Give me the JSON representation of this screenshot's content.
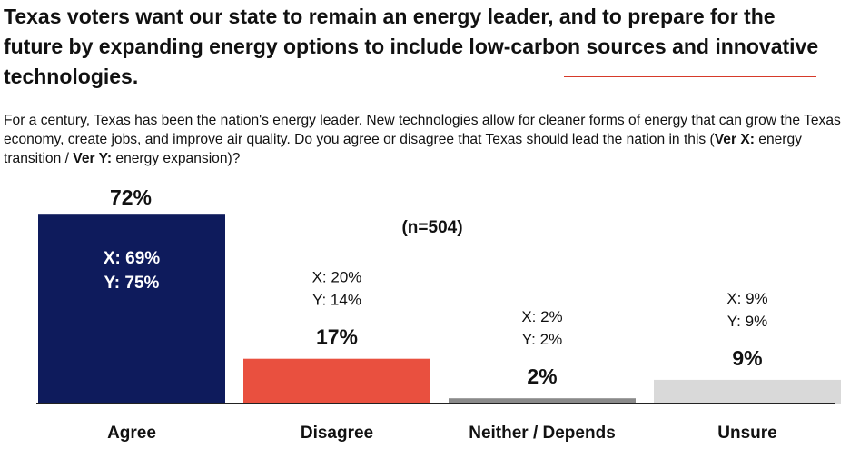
{
  "title": "Texas voters want our state to remain an energy leader, and to prepare for the future by expanding energy options to include low-carbon sources and innovative technologies.",
  "subtitle": {
    "lead": "For a century, Texas has been the nation's energy leader. New technologies allow for cleaner forms of energy that can grow the Texas  economy, create jobs, and improve air quality. Do you agree or disagree that Texas should lead the nation in this (",
    "ver_x": "Ver X:",
    "ver_x_text": " energy transition / ",
    "ver_y": "Ver Y:",
    "ver_y_text": " energy expansion)?"
  },
  "sample_size": "(n=504)",
  "colors": {
    "agree": "#0e1b5c",
    "disagree": "#e9503f",
    "neither": "#8a8a8a",
    "unsure": "#d9d9d9",
    "axis": "#222222"
  },
  "chart_data": {
    "type": "bar",
    "title": "Texas voters want our state to remain an energy leader",
    "xlabel": "",
    "ylabel": "",
    "ylim": [
      0,
      100
    ],
    "categories": [
      "Agree",
      "Disagree",
      "Neither / Depends",
      "Unsure"
    ],
    "values": [
      72,
      17,
      2,
      9
    ],
    "value_labels": [
      "72%",
      "17%",
      "2%",
      "9%"
    ],
    "series": [
      {
        "name": "X",
        "values": [
          69,
          20,
          2,
          9
        ],
        "labels": [
          "X:  69%",
          "X:  20%",
          "X:  2%",
          "X:  9%"
        ]
      },
      {
        "name": "Y",
        "values": [
          75,
          14,
          2,
          9
        ],
        "labels": [
          "Y:  75%",
          "Y:  14%",
          "Y:  2%",
          "Y:  9%"
        ]
      }
    ]
  }
}
